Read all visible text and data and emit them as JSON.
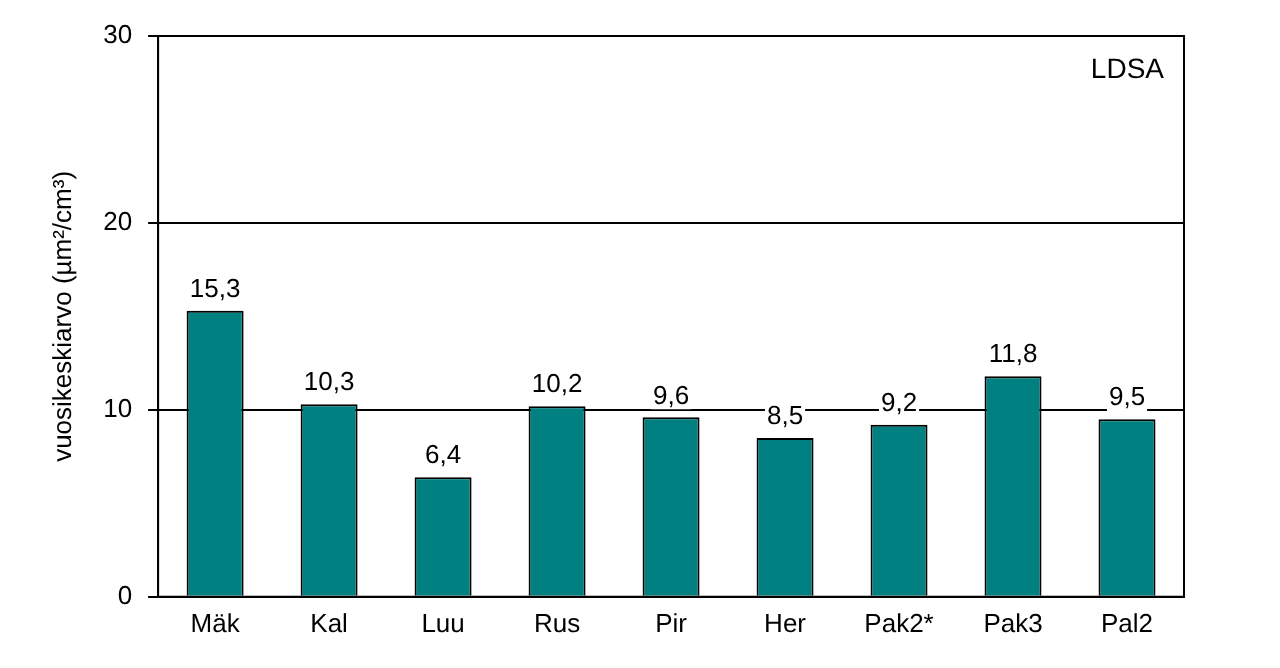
{
  "chart_data": {
    "type": "bar",
    "ylabel": "vuosikeskiarvo (µm²/cm³)",
    "annotations": [
      "LDSA"
    ],
    "categories": [
      "Mäk",
      "Kal",
      "Luu",
      "Rus",
      "Pir",
      "Her",
      "Pak2*",
      "Pak3",
      "Pal2"
    ],
    "values": [
      15.3,
      10.3,
      6.4,
      10.2,
      9.6,
      8.5,
      9.2,
      11.8,
      9.5
    ],
    "value_labels": [
      "15,3",
      "10,3",
      "6,4",
      "10,2",
      "9,6",
      "8,5",
      "9,2",
      "11,8",
      "9,5"
    ],
    "color": "#008080",
    "ylim": [
      0,
      30
    ],
    "yticks": [
      0,
      10,
      20,
      30
    ],
    "grid": "y"
  }
}
